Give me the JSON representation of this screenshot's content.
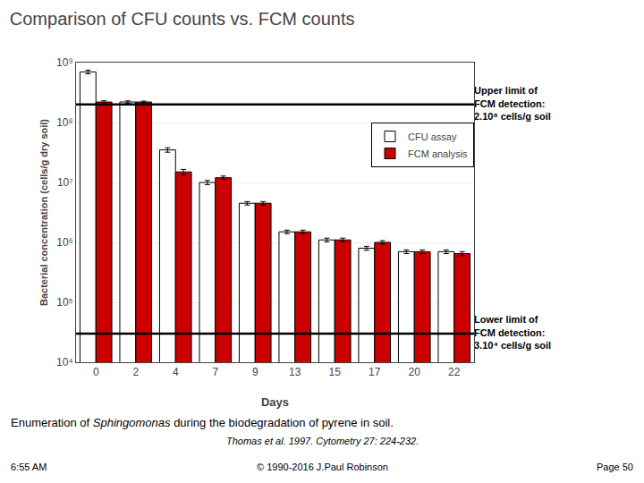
{
  "chart_data": {
    "type": "bar",
    "title": "Comparison of CFU counts vs. FCM counts",
    "xlabel": "Days",
    "ylabel": "Bacterial concentration (cells/g dry soil)",
    "categories": [
      "0",
      "2",
      "4",
      "7",
      "9",
      "13",
      "15",
      "17",
      "20",
      "22"
    ],
    "series": [
      {
        "name": "CFU assay",
        "color": "#ffffff",
        "values": [
          700000000.0,
          220000000.0,
          35000000.0,
          10000000.0,
          4500000.0,
          1500000.0,
          1100000.0,
          800000.0,
          700000.0,
          700000.0
        ],
        "errors": [
          50000000.0,
          10000000.0,
          3000000.0,
          800000.0,
          300000.0,
          100000.0,
          80000.0,
          60000.0,
          50000.0,
          50000.0
        ]
      },
      {
        "name": "FCM analysis",
        "color": "#cc0000",
        "values": [
          220000000.0,
          220000000.0,
          15000000.0,
          12000000.0,
          4500000.0,
          1500000.0,
          1100000.0,
          1000000.0,
          700000.0,
          650000.0
        ],
        "errors": [
          10000000.0,
          8000000.0,
          1500000.0,
          800000.0,
          300000.0,
          100000.0,
          80000.0,
          70000.0,
          50000.0,
          50000.0
        ]
      }
    ],
    "limits": [
      {
        "value": 200000000.0,
        "label": "Upper limit of\nFCM detection:\n2.10⁸ cells/g soil"
      },
      {
        "value": 30000.0,
        "label": "Lower limit of\nFCM detection:\n3.10⁴ cells/g soil"
      }
    ],
    "log": "y",
    "ylim": [
      10000.0,
      1000000000.0
    ],
    "yticks": [
      {
        "value": 10000.0,
        "label": "10⁴"
      },
      {
        "value": 100000.0,
        "label": "10⁵"
      },
      {
        "value": 1000000.0,
        "label": "10⁶"
      },
      {
        "value": 10000000.0,
        "label": "10⁷"
      },
      {
        "value": 100000000.0,
        "label": "10⁸"
      },
      {
        "value": 1000000000.0,
        "label": "10⁹"
      }
    ],
    "grid": true,
    "legend": "upper right",
    "caption": "Enumeration of Sphingomonas during the biodegradation of pyrene in soil.",
    "caption_italic": "Sphingomonas",
    "reference": "Thomas et al. 1997. Cytometry 27: 224-232.",
    "footer_left": "6:55 AM",
    "footer_center": "© 1990-2016 J.Paul Robinson",
    "footer_right": "Page 50"
  }
}
